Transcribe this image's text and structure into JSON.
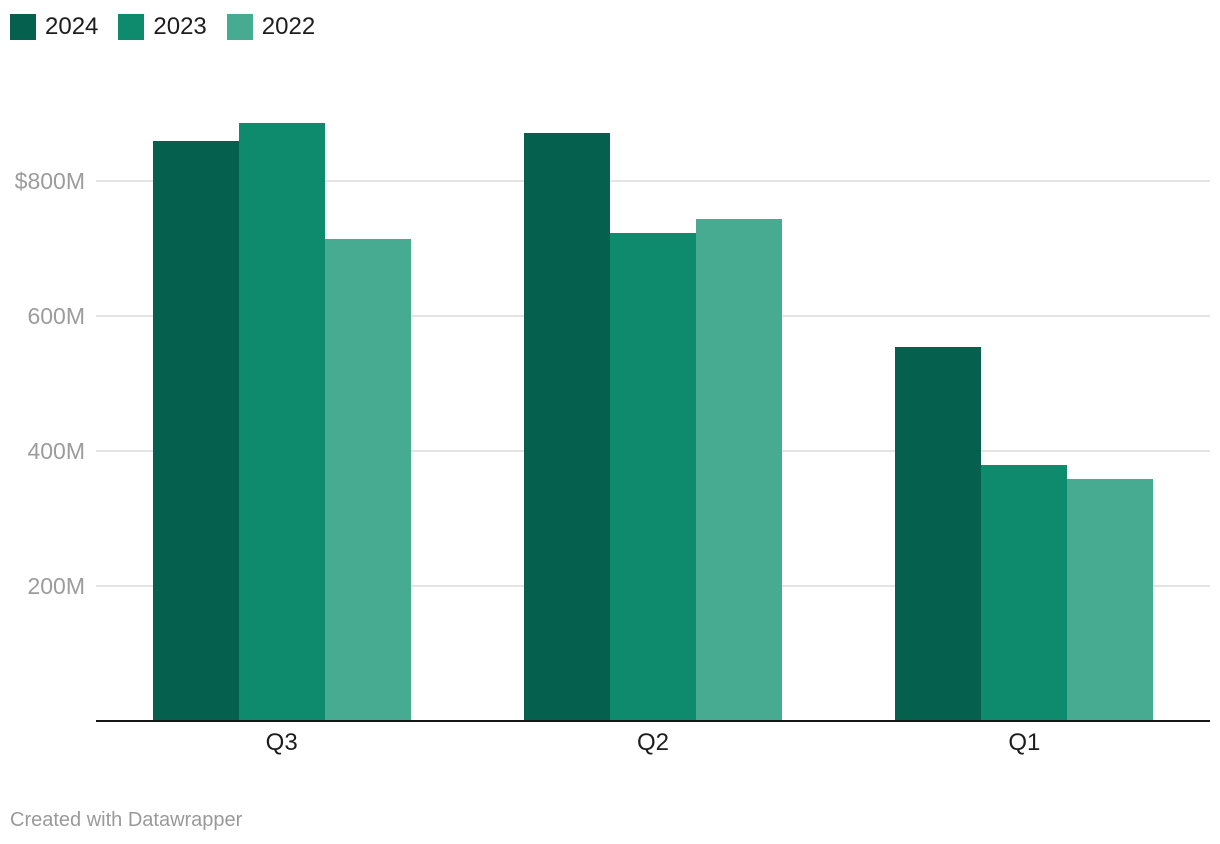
{
  "footer": {
    "text": "Created with Datawrapper"
  },
  "chart_data": {
    "type": "bar",
    "title": "",
    "xlabel": "",
    "ylabel": "",
    "categories": [
      "Q3",
      "Q2",
      "Q1"
    ],
    "series": [
      {
        "name": "2024",
        "color": "#05604E",
        "values": [
          860,
          871,
          553
        ]
      },
      {
        "name": "2023",
        "color": "#0E8A6D",
        "values": [
          886,
          723,
          379
        ]
      },
      {
        "name": "2022",
        "color": "#46AB90",
        "values": [
          714,
          744,
          358
        ]
      }
    ],
    "yticks": [
      {
        "value": 800,
        "label": "$800M"
      },
      {
        "value": 600,
        "label": "600M"
      },
      {
        "value": 400,
        "label": "400M"
      },
      {
        "value": 200,
        "label": "200M"
      }
    ],
    "ylim": [
      0,
      800
    ],
    "unit": "M USD",
    "grid": true,
    "legend_position": "top-left",
    "colors": {
      "gridline": "#e4e4e4",
      "axis_line": "#161616",
      "tick_label": "#9c9c9c",
      "category_label": "#1d1d1d",
      "footer_text": "#9a9a9a",
      "background": "#ffffff"
    }
  }
}
